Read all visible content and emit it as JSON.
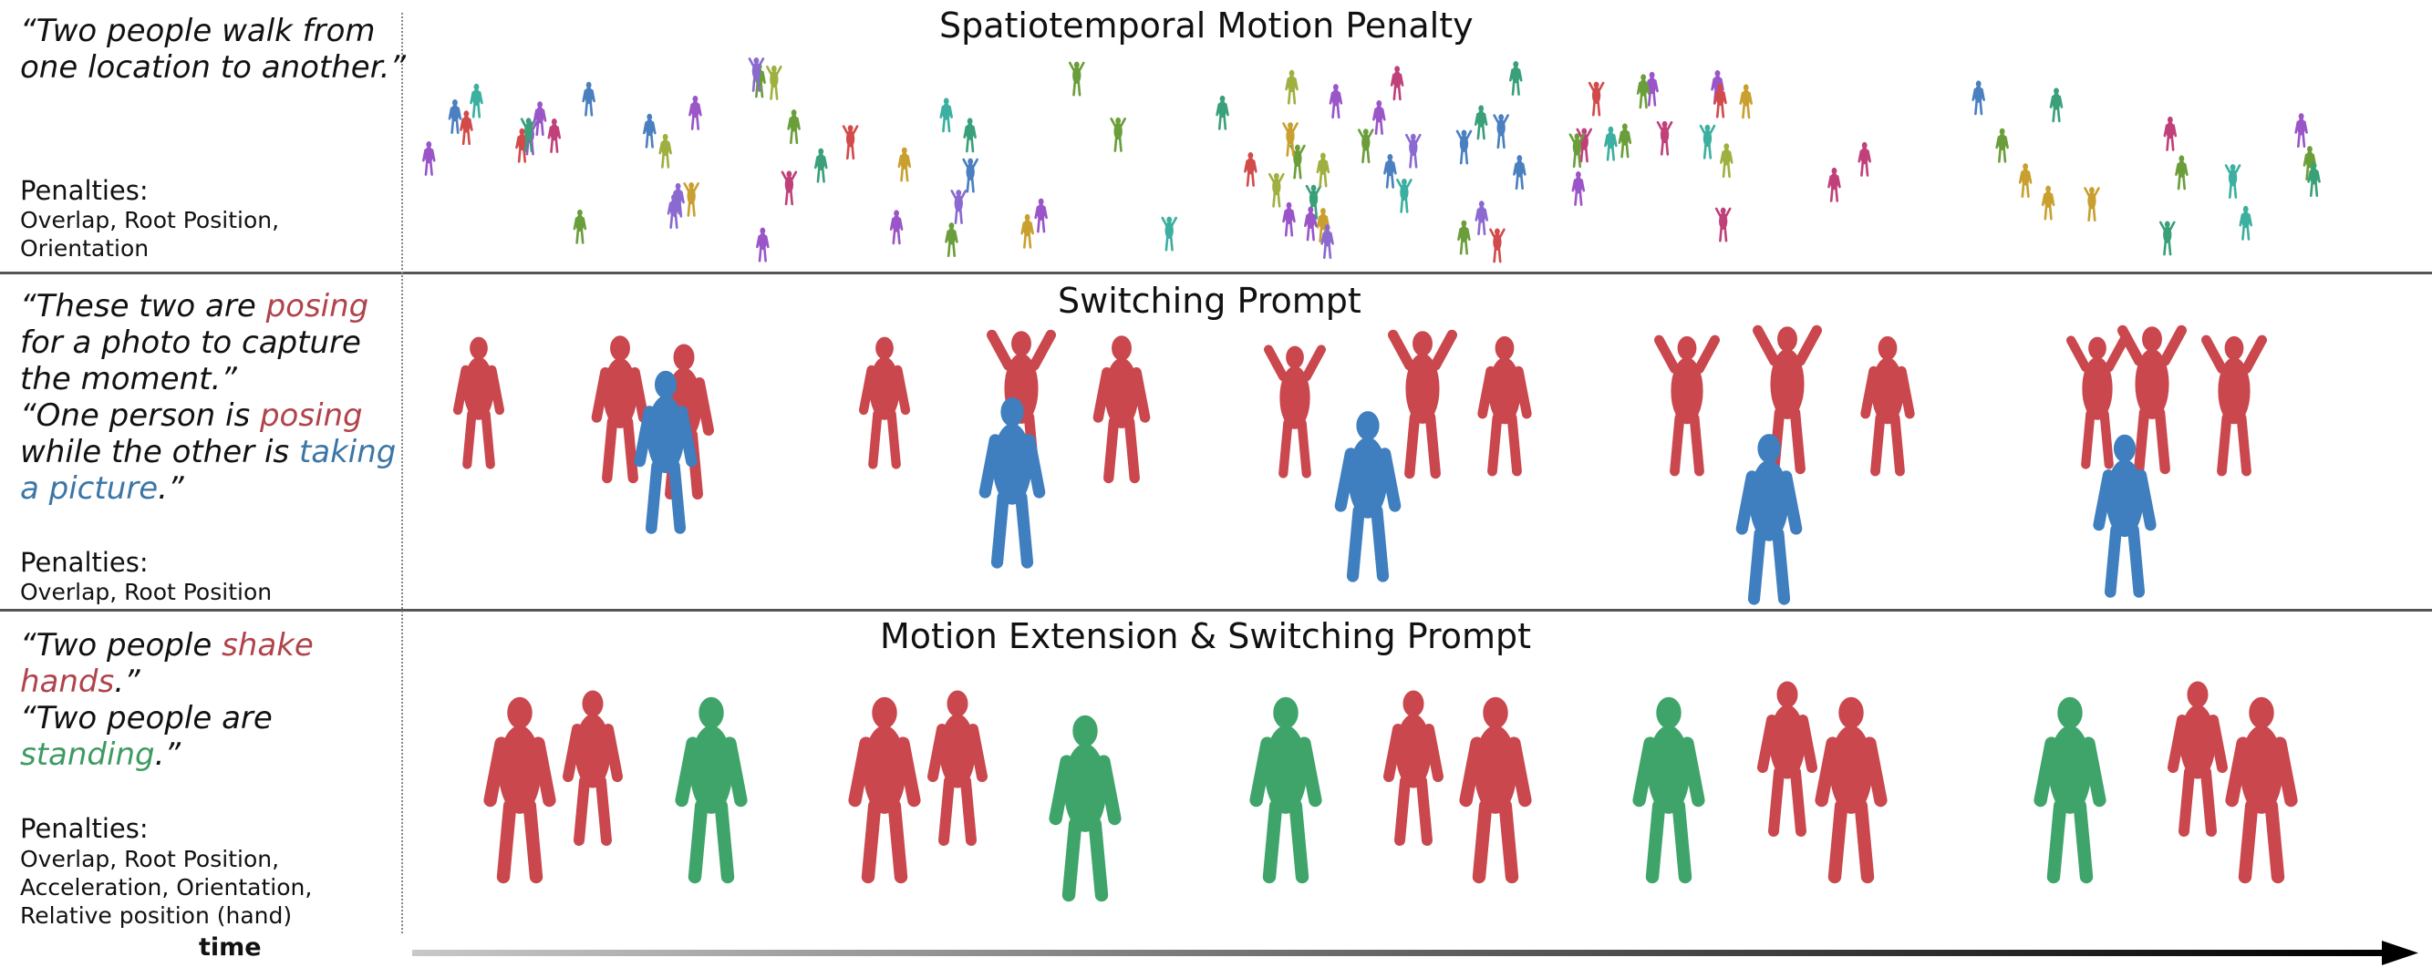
{
  "rows": [
    {
      "title": "Spatiotemporal Motion Penalty",
      "quote_lines": [
        "“Two people walk from",
        "one location to another.”"
      ],
      "penalties_heading": "Penalties:",
      "penalties_lines": [
        "Overlap, Root Position,",
        "Orientation"
      ]
    },
    {
      "title": "Switching Prompt",
      "quote_segments": {
        "l1a": "“These two are ",
        "l1b": "posing",
        "l2": "for a photo to capture",
        "l3": "the moment.”",
        "l4a": "“One person is ",
        "l4b": "posing",
        "l5a": "while the other is ",
        "l5b": "taking",
        "l6a": "a picture",
        "l6b": ".”"
      },
      "penalties_heading": "Penalties:",
      "penalties_lines": [
        "Overlap, Root Position"
      ]
    },
    {
      "title": "Motion Extension & Switching Prompt",
      "quote_segments": {
        "l1a": "“Two people ",
        "l1b": "shake",
        "l2a": "hands",
        "l2b": ".”",
        "l3": "“Two people are",
        "l4a": "standing",
        "l4b": ".”"
      },
      "penalties_heading": "Penalties:",
      "penalties_lines": [
        "Overlap, Root Position,",
        "Acceleration, Orientation,",
        "Relative position (hand)"
      ]
    }
  ],
  "time_label": "time",
  "colors": {
    "red_person": "#c9474d",
    "blue_person": "#3f7fbf",
    "green_person": "#3fa46a",
    "prompt_red_text": "#b0434b",
    "prompt_blue_text": "#3c76a6",
    "prompt_green_text": "#3f9a62"
  }
}
